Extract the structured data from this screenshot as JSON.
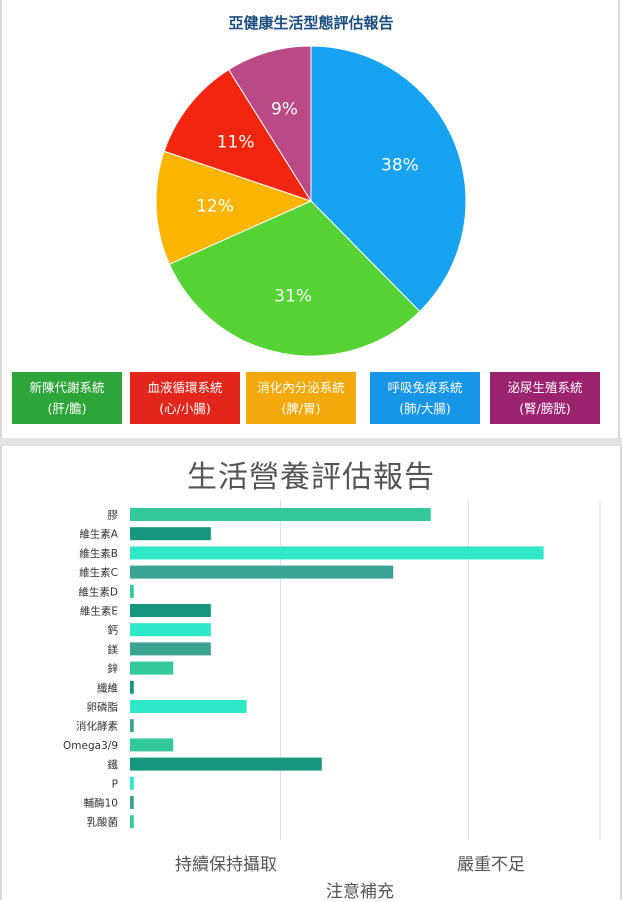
{
  "chart_data": [
    {
      "type": "pie",
      "title": "亞健康生活型態評估報告",
      "slices": [
        {
          "label": "呼吸免疫系統",
          "sublabel": "(肺/大腸)",
          "value": 38,
          "value_label": "38%",
          "color": "#17a2f2"
        },
        {
          "label": "新陳代謝系統",
          "sublabel": "(肝/膽)",
          "value": 31,
          "value_label": "31%",
          "color": "#55d234"
        },
        {
          "label": "消化內分泌系統",
          "sublabel": "(脾/胃)",
          "value": 12,
          "value_label": "12%",
          "color": "#f9b500"
        },
        {
          "label": "血液循環系統",
          "sublabel": "(心/小腸)",
          "value": 11,
          "value_label": "11%",
          "color": "#f2260e"
        },
        {
          "label": "泌尿生殖系統",
          "sublabel": "(腎/膀胱)",
          "value": 9,
          "value_label": "9%",
          "color": "#b94a85"
        }
      ],
      "legend": [
        {
          "label": "新陳代謝系統",
          "sublabel": "(肝/膽)",
          "color": "#2da53a"
        },
        {
          "label": "血液循環系統",
          "sublabel": "(心/小腸)",
          "color": "#e3261b"
        },
        {
          "label": "消化內分泌系統",
          "sublabel": "(脾/胃)",
          "color": "#f3a90c"
        },
        {
          "label": "呼吸免疫系統",
          "sublabel": "(肺/大腸)",
          "color": "#1796e8"
        },
        {
          "label": "泌尿生殖系統",
          "sublabel": "(腎/膀胱)",
          "color": "#9b226e"
        }
      ],
      "legend_position": "bottom"
    },
    {
      "type": "bar",
      "orientation": "horizontal",
      "title": "生活營養評估報告",
      "categories": [
        "膠",
        "維生素A",
        "維生素B",
        "維生素C",
        "維生素D",
        "維生素E",
        "鈣",
        "鎂",
        "鋅",
        "纖維",
        "卵磷脂",
        "消化酵素",
        "Omega3/9",
        "鐵",
        "P",
        "輔酶10",
        "乳酸菌"
      ],
      "values": [
        16,
        4.3,
        22,
        14,
        0.2,
        4.3,
        4.3,
        4.3,
        2.3,
        0.2,
        6.2,
        0.2,
        2.3,
        10.2,
        0.2,
        0.2,
        0.2
      ],
      "xlim": [
        0,
        25
      ],
      "zones": [
        {
          "label": "持續保持攝取",
          "range": [
            0,
            8
          ]
        },
        {
          "label": "注意補充",
          "range": [
            8,
            18
          ]
        },
        {
          "label": "嚴重不足",
          "range": [
            18,
            25
          ]
        }
      ],
      "gridlines_at": [
        8,
        18
      ],
      "grid": true,
      "colors": [
        "#33c99a",
        "#16967c",
        "#2ee8c8",
        "#3aa394"
      ]
    }
  ]
}
